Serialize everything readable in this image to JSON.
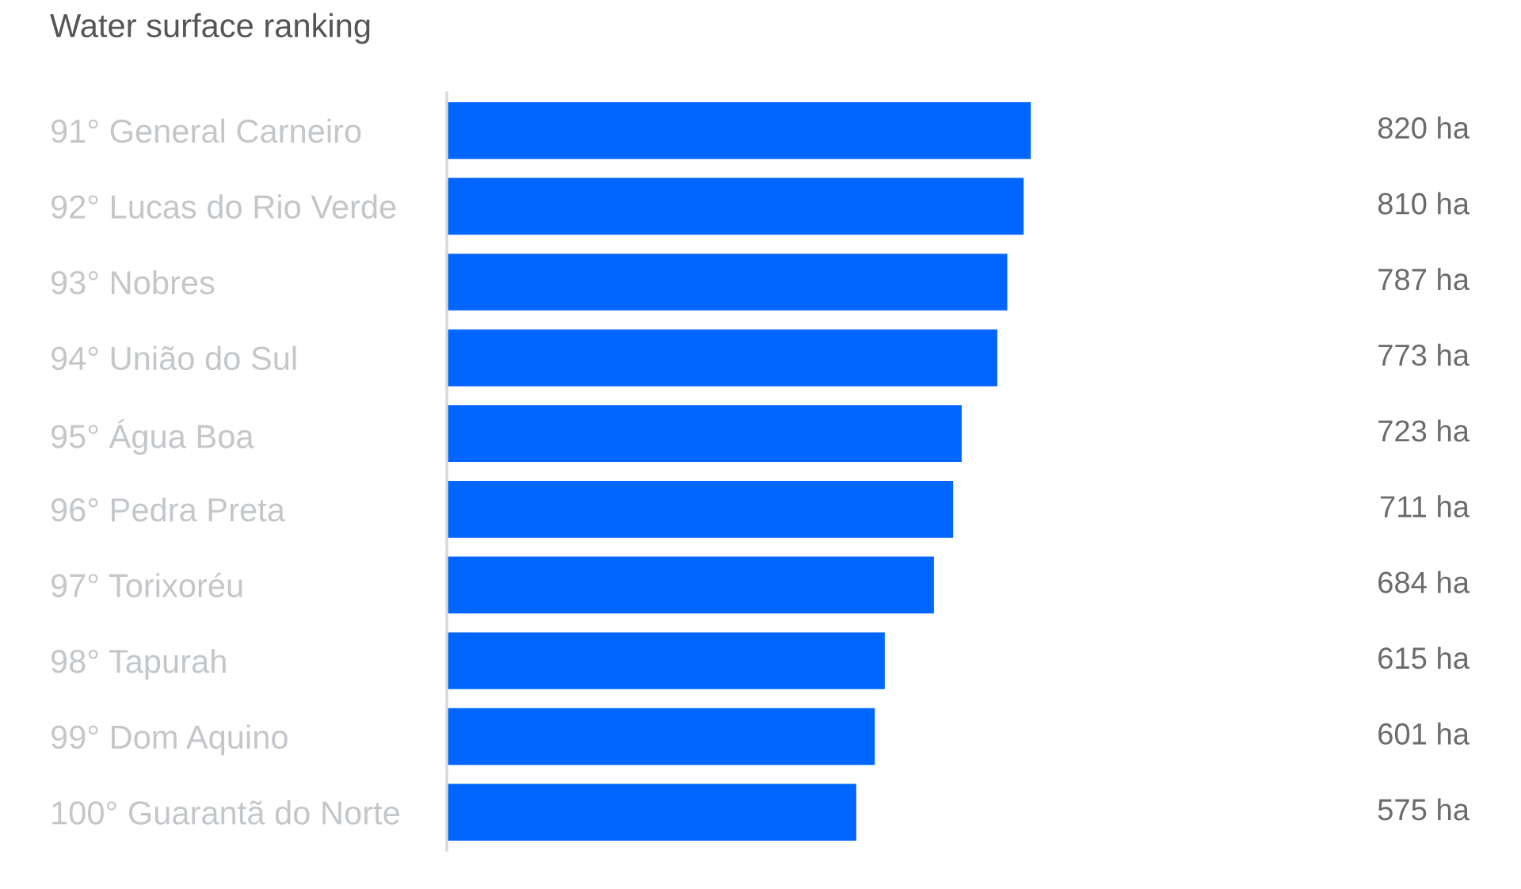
{
  "chart_data": {
    "type": "bar",
    "orientation": "horizontal",
    "title": "Water surface ranking",
    "categories": [
      "91° General Carneiro",
      "92° Lucas do Rio Verde",
      "93° Nobres",
      "94° União do Sul",
      "95° Água Boa",
      "96° Pedra Preta",
      "97° Torixoréu",
      "98° Tapurah",
      "99° Dom Aquino",
      "100° Guarantã do Norte"
    ],
    "values": [
      820,
      810,
      787,
      773,
      723,
      711,
      684,
      615,
      601,
      575
    ],
    "color": "#0066ff",
    "value_labels": [
      "820 ha",
      "810 ha",
      "787 ha",
      "773 ha",
      "723 ha",
      "711 ha",
      "684 ha",
      "615 ha",
      "601 ha",
      "575 ha"
    ],
    "tick_labels": "y"
  }
}
